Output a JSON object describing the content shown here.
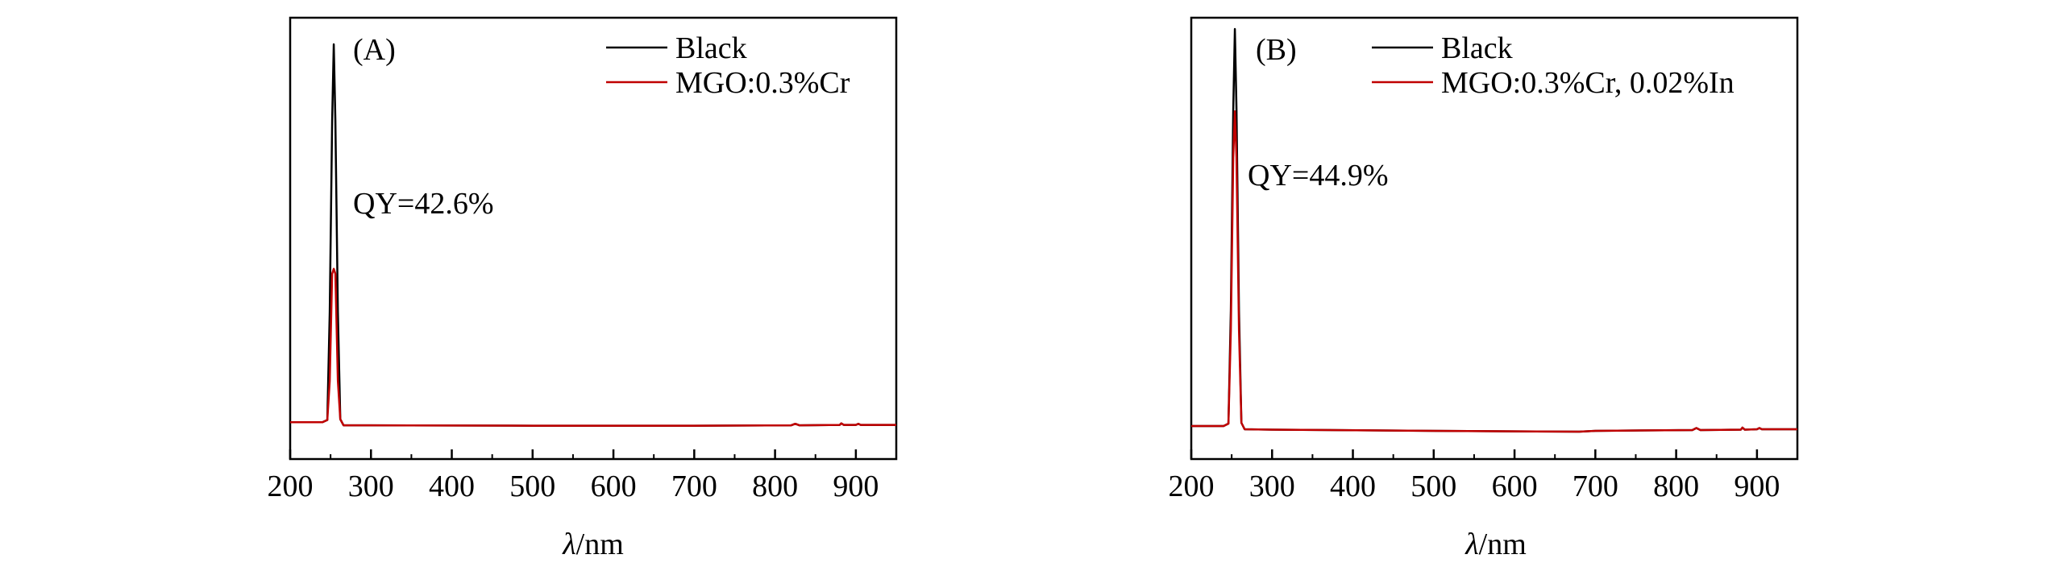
{
  "chart_data": [
    {
      "type": "line",
      "panel_label": "(A)",
      "xlabel": "λ/nm",
      "ylabel": "",
      "xlim": [
        200,
        950
      ],
      "xticks": [
        "200",
        "300",
        "400",
        "500",
        "600",
        "700",
        "800",
        "900"
      ],
      "annotation": "QY=42.6%",
      "legend_position": "top-right",
      "series": [
        {
          "name": "Black",
          "color": "#000000",
          "points": [
            [
              200,
              0.012
            ],
            [
              240,
              0.012
            ],
            [
              246,
              0.018
            ],
            [
              249,
              0.3
            ],
            [
              252,
              0.8
            ],
            [
              254,
              1.0
            ],
            [
              256,
              0.8
            ],
            [
              259,
              0.3
            ],
            [
              262,
              0.02
            ],
            [
              266,
              0.004
            ],
            [
              300,
              0.004
            ],
            [
              500,
              0.003
            ],
            [
              700,
              0.003
            ],
            [
              820,
              0.004
            ],
            [
              825,
              0.008
            ],
            [
              830,
              0.004
            ],
            [
              880,
              0.005
            ],
            [
              882,
              0.009
            ],
            [
              885,
              0.005
            ],
            [
              900,
              0.005
            ],
            [
              903,
              0.008
            ],
            [
              906,
              0.005
            ],
            [
              950,
              0.005
            ]
          ]
        },
        {
          "name": "MGO:0.3%Cr",
          "color": "#c00000",
          "points": [
            [
              200,
              0.012
            ],
            [
              240,
              0.012
            ],
            [
              246,
              0.018
            ],
            [
              249,
              0.12
            ],
            [
              252,
              0.4
            ],
            [
              254,
              0.413
            ],
            [
              256,
              0.4
            ],
            [
              259,
              0.12
            ],
            [
              262,
              0.02
            ],
            [
              266,
              0.004
            ],
            [
              300,
              0.004
            ],
            [
              500,
              0.003
            ],
            [
              700,
              0.003
            ],
            [
              820,
              0.004
            ],
            [
              825,
              0.008
            ],
            [
              830,
              0.004
            ],
            [
              880,
              0.005
            ],
            [
              882,
              0.009
            ],
            [
              885,
              0.005
            ],
            [
              900,
              0.005
            ],
            [
              903,
              0.008
            ],
            [
              906,
              0.005
            ],
            [
              950,
              0.005
            ]
          ]
        }
      ]
    },
    {
      "type": "line",
      "panel_label": "(B)",
      "xlabel": "λ/nm",
      "ylabel": "",
      "xlim": [
        200,
        950
      ],
      "xticks": [
        "200",
        "300",
        "400",
        "500",
        "600",
        "700",
        "800",
        "900"
      ],
      "annotation": "QY=44.9%",
      "legend_position": "top-right",
      "series": [
        {
          "name": "Black",
          "color": "#000000",
          "points": [
            [
              200,
              0.012
            ],
            [
              240,
              0.012
            ],
            [
              246,
              0.018
            ],
            [
              249,
              0.3
            ],
            [
              252,
              0.8
            ],
            [
              254,
              1.0
            ],
            [
              256,
              0.8
            ],
            [
              259,
              0.3
            ],
            [
              262,
              0.02
            ],
            [
              266,
              0.004
            ],
            [
              300,
              0.003
            ],
            [
              500,
              0.0
            ],
            [
              680,
              -0.002
            ],
            [
              700,
              0.0
            ],
            [
              820,
              0.002
            ],
            [
              825,
              0.007
            ],
            [
              830,
              0.002
            ],
            [
              880,
              0.003
            ],
            [
              882,
              0.008
            ],
            [
              885,
              0.003
            ],
            [
              900,
              0.004
            ],
            [
              903,
              0.007
            ],
            [
              906,
              0.004
            ],
            [
              950,
              0.004
            ]
          ]
        },
        {
          "name": "MGO:0.3%Cr, 0.02%In",
          "color": "#c00000",
          "points": [
            [
              200,
              0.012
            ],
            [
              240,
              0.012
            ],
            [
              246,
              0.018
            ],
            [
              249,
              0.25
            ],
            [
              252,
              0.68
            ],
            [
              254,
              0.795
            ],
            [
              256,
              0.68
            ],
            [
              259,
              0.25
            ],
            [
              262,
              0.02
            ],
            [
              266,
              0.004
            ],
            [
              300,
              0.003
            ],
            [
              500,
              0.0
            ],
            [
              680,
              -0.002
            ],
            [
              700,
              0.0
            ],
            [
              820,
              0.002
            ],
            [
              825,
              0.007
            ],
            [
              830,
              0.002
            ],
            [
              880,
              0.003
            ],
            [
              882,
              0.008
            ],
            [
              885,
              0.003
            ],
            [
              900,
              0.004
            ],
            [
              903,
              0.007
            ],
            [
              906,
              0.004
            ],
            [
              950,
              0.004
            ]
          ]
        }
      ]
    }
  ]
}
